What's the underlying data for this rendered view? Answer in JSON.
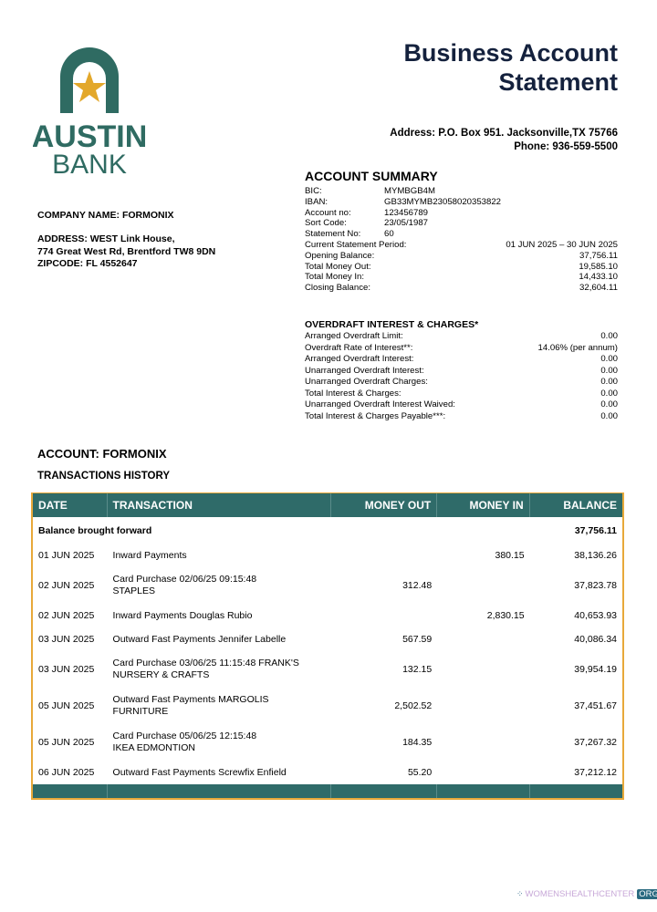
{
  "header": {
    "title_line1": "Business Account",
    "title_line2": "Statement",
    "address": "Address: P.O. Box 951. Jacksonville,TX 75766",
    "phone": "Phone: 936-559-5500"
  },
  "logo": {
    "line1": "AUSTIN",
    "line2": "BANK",
    "colors": {
      "arch": "#2f6b62",
      "star": "#e3a82b"
    }
  },
  "company": {
    "name": "COMPANY NAME: FORMONIX",
    "address1": "ADDRESS: WEST Link House,",
    "address2": "774 Great West Rd, Brentford TW8 9DN",
    "zip": "ZIPCODE: FL 4552647"
  },
  "summary": {
    "title": "ACCOUNT SUMMARY",
    "ids": [
      {
        "k": "BIC:",
        "v": "MYMBGB4M"
      },
      {
        "k": "IBAN:",
        "v": "GB33MYMB23058020353822"
      },
      {
        "k": "Account no:",
        "v": "123456789"
      },
      {
        "k": "Sort Code:",
        "v": "23/05/1987"
      },
      {
        "k": "Statement No:",
        "v": "60"
      }
    ],
    "totals": [
      {
        "k": "Current Statement Period:",
        "v": "01 JUN 2025 – 30 JUN 2025"
      },
      {
        "k": "Opening Balance:",
        "v": "37,756.11"
      },
      {
        "k": "Total Money Out:",
        "v": "19,585.10"
      },
      {
        "k": "Total Money In:",
        "v": "14,433.10"
      },
      {
        "k": "Closing Balance:",
        "v": "32,604.11"
      }
    ]
  },
  "overdraft": {
    "title": "OVERDRAFT INTEREST & CHARGES*",
    "rows": [
      {
        "k": "Arranged Overdraft Limit:",
        "v": "0.00"
      },
      {
        "k": "Overdraft Rate of Interest**:",
        "v": "14.06% (per annum)"
      },
      {
        "k": "Arranged Overdraft Interest:",
        "v": "0.00"
      },
      {
        "k": "Unarranged Overdraft Interest:",
        "v": "0.00"
      },
      {
        "k": "Unarranged Overdraft Charges:",
        "v": "0.00"
      },
      {
        "k": "Total Interest & Charges:",
        "v": "0.00"
      },
      {
        "k": "Unarranged Overdraft Interest Waived:",
        "v": "0.00"
      },
      {
        "k": "Total Interest & Charges Payable***:",
        "v": "0.00"
      }
    ]
  },
  "account": {
    "label": "ACCOUNT: FORMONIX",
    "history": "TRANSACTIONS HISTORY"
  },
  "table": {
    "headers": [
      "DATE",
      "TRANSACTION",
      "MONEY OUT",
      "MONEY IN",
      "BALANCE"
    ],
    "brought_forward": {
      "label": "Balance brought forward",
      "balance": "37,756.11"
    },
    "rows": [
      {
        "date": "01 JUN 2025",
        "desc": "Inward Payments",
        "out": "",
        "in": "380.15",
        "bal": "38,136.26"
      },
      {
        "date": "02 JUN 2025",
        "desc": "Card Purchase 02/06/25 09:15:48\nSTAPLES",
        "out": "312.48",
        "in": "",
        "bal": "37,823.78"
      },
      {
        "date": "02 JUN 2025",
        "desc": "Inward Payments Douglas Rubio",
        "out": "",
        "in": "2,830.15",
        "bal": "40,653.93"
      },
      {
        "date": "03 JUN 2025",
        "desc": "Outward Fast Payments Jennifer Labelle",
        "out": "567.59",
        "in": "",
        "bal": "40,086.34"
      },
      {
        "date": "03 JUN 2025",
        "desc": "Card Purchase 03/06/25 11:15:48 FRANK'S\nNURSERY & CRAFTS",
        "out": "132.15",
        "in": "",
        "bal": "39,954.19"
      },
      {
        "date": "05 JUN 2025",
        "desc": "Outward Fast Payments MARGOLIS\nFURNITURE",
        "out": "2,502.52",
        "in": "",
        "bal": "37,451.67"
      },
      {
        "date": "05 JUN 2025",
        "desc": "Card Purchase 05/06/25 12:15:48\nIKEA EDMONTION",
        "out": "184.35",
        "in": "",
        "bal": "37,267.32"
      },
      {
        "date": "06 JUN 2025",
        "desc": "Outward Fast Payments Screwfix Enfield",
        "out": "55.20",
        "in": "",
        "bal": "37,212.12"
      }
    ]
  },
  "watermark": {
    "text": "WOMENSHEALTHCENTER",
    "badge": "ORG"
  }
}
